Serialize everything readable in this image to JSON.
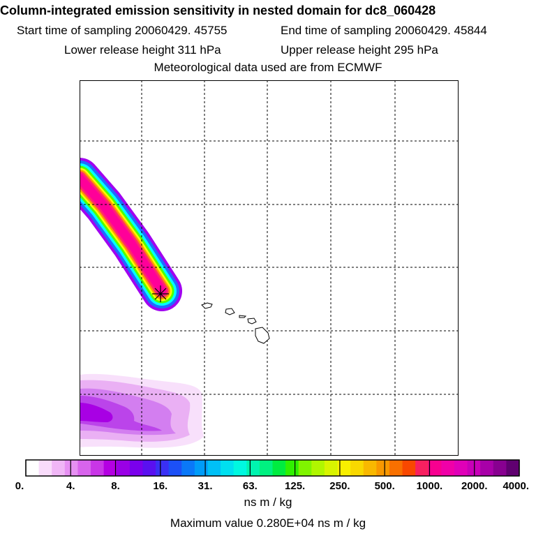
{
  "header": {
    "title": "Column-integrated emission sensitivity in nested domain for dc8_060428",
    "start_time": "Start time of sampling 20060429. 45755",
    "end_time": "End time of sampling 20060429. 45844",
    "lower_height": "Lower release height  311 hPa",
    "upper_height": "Upper release height  295 hPa",
    "met_data": "Meteorological data used are from ECMWF"
  },
  "colorbar": {
    "tick_labels": [
      "0.",
      "4.",
      "8.",
      "16.",
      "31.",
      "63.",
      "125.",
      "250.",
      "500.",
      "1000.",
      "2000.",
      "4000."
    ],
    "colors": [
      "#ffffff",
      "#f9dcfb",
      "#f0b6f6",
      "#e690f2",
      "#d864ec",
      "#c936e7",
      "#b400e2",
      "#9a00e6",
      "#7a00ec",
      "#5a10f0",
      "#3a30f4",
      "#1c50f6",
      "#0a78f8",
      "#009cf8",
      "#00c0f6",
      "#00e0f0",
      "#00f8e0",
      "#00f4b0",
      "#00f080",
      "#00ec40",
      "#30f000",
      "#80f400",
      "#b0f600",
      "#d8f400",
      "#f8f000",
      "#f8d800",
      "#f8b800",
      "#f89800",
      "#f87000",
      "#f84800",
      "#f82060",
      "#f80090",
      "#f000a8",
      "#e000b8",
      "#c800b8",
      "#a800a8",
      "#880090",
      "#600070"
    ],
    "unit_label": "ns m / kg",
    "max_label": "Maximum value  0.280E+04 ns m / kg"
  },
  "map": {
    "grid_color": "#000000",
    "release_marker": "asterisk-icon",
    "plume_band_colors": [
      "#a000f0",
      "#1e6cff",
      "#00ffff",
      "#50ff00",
      "#ffff00",
      "#ff9900",
      "#ff2a6a",
      "#ff0099"
    ],
    "southern_field_colors": [
      "#f6d6fb",
      "#e8aaf4",
      "#d27aee",
      "#bb40e8",
      "#a800e4"
    ],
    "islands": "hawaii-islands"
  }
}
